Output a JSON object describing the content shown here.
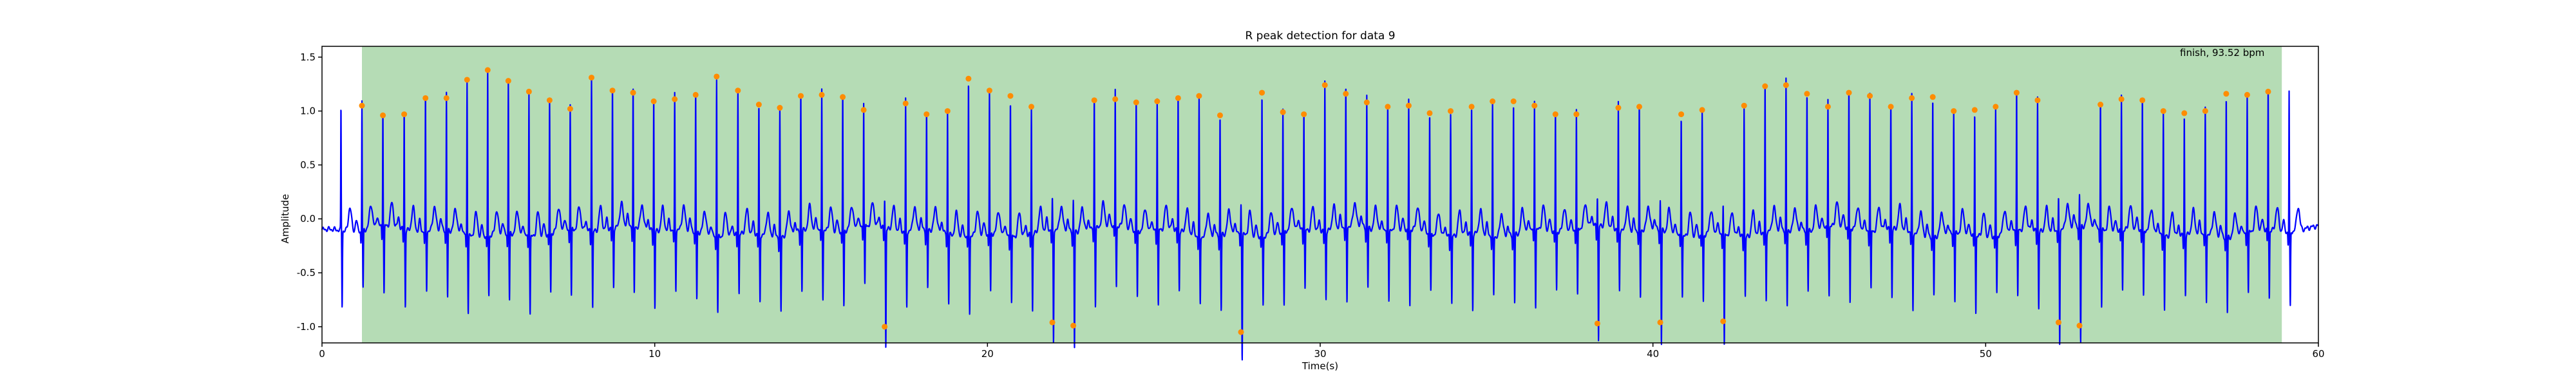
{
  "chart_data": {
    "type": "line",
    "title": "R peak detection for data 9",
    "xlabel": "Time(s)",
    "ylabel": "Amplitude",
    "xlim": [
      0,
      60
    ],
    "ylim": [
      -1.15,
      1.6
    ],
    "xticks": [
      0,
      10,
      20,
      30,
      40,
      50,
      60
    ],
    "yticks": [
      -1.0,
      -0.5,
      0.0,
      0.5,
      1.0,
      1.5
    ],
    "grid": false,
    "annotation": "finish, 93.52 bpm",
    "colors": {
      "signal": "#0000ff",
      "peaks": "#ff8c00",
      "window": "#b5dcb5",
      "axes": "#000000"
    },
    "detection_window": [
      1.2,
      58.9
    ],
    "beats": [
      {
        "t": 1.2,
        "a": 1.05
      },
      {
        "t": 1.83,
        "a": 0.96
      },
      {
        "t": 2.47,
        "a": 0.97
      },
      {
        "t": 3.11,
        "a": 1.12
      },
      {
        "t": 3.74,
        "a": 1.12
      },
      {
        "t": 4.36,
        "a": 1.29
      },
      {
        "t": 4.98,
        "a": 1.38
      },
      {
        "t": 5.6,
        "a": 1.28
      },
      {
        "t": 6.22,
        "a": 1.18
      },
      {
        "t": 6.84,
        "a": 1.1
      },
      {
        "t": 7.46,
        "a": 1.02
      },
      {
        "t": 8.1,
        "a": 1.31
      },
      {
        "t": 8.73,
        "a": 1.19
      },
      {
        "t": 9.35,
        "a": 1.17
      },
      {
        "t": 9.97,
        "a": 1.09
      },
      {
        "t": 10.6,
        "a": 1.11
      },
      {
        "t": 11.23,
        "a": 1.15
      },
      {
        "t": 11.86,
        "a": 1.32
      },
      {
        "t": 12.5,
        "a": 1.19
      },
      {
        "t": 13.13,
        "a": 1.06
      },
      {
        "t": 13.76,
        "a": 1.03
      },
      {
        "t": 14.39,
        "a": 1.14
      },
      {
        "t": 15.02,
        "a": 1.15
      },
      {
        "t": 15.65,
        "a": 1.13
      },
      {
        "t": 16.28,
        "a": 1.01
      },
      {
        "t": 16.91,
        "a": -1.0
      },
      {
        "t": 17.54,
        "a": 1.07
      },
      {
        "t": 18.17,
        "a": 0.97
      },
      {
        "t": 18.8,
        "a": 1.0
      },
      {
        "t": 19.43,
        "a": 1.3
      },
      {
        "t": 20.06,
        "a": 1.19
      },
      {
        "t": 20.69,
        "a": 1.14
      },
      {
        "t": 21.32,
        "a": 1.04
      },
      {
        "t": 21.95,
        "a": -0.96
      },
      {
        "t": 22.58,
        "a": -0.99
      },
      {
        "t": 23.21,
        "a": 1.1
      },
      {
        "t": 23.84,
        "a": 1.11
      },
      {
        "t": 24.47,
        "a": 1.08
      },
      {
        "t": 25.1,
        "a": 1.09
      },
      {
        "t": 25.73,
        "a": 1.12
      },
      {
        "t": 26.36,
        "a": 1.14
      },
      {
        "t": 26.99,
        "a": 0.96
      },
      {
        "t": 27.62,
        "a": -1.05
      },
      {
        "t": 28.25,
        "a": 1.17
      },
      {
        "t": 28.88,
        "a": 0.99
      },
      {
        "t": 29.51,
        "a": 0.97
      },
      {
        "t": 30.14,
        "a": 1.24
      },
      {
        "t": 30.77,
        "a": 1.16
      },
      {
        "t": 31.4,
        "a": 1.08
      },
      {
        "t": 32.03,
        "a": 1.04
      },
      {
        "t": 32.66,
        "a": 1.05
      },
      {
        "t": 33.29,
        "a": 0.98
      },
      {
        "t": 33.92,
        "a": 1.0
      },
      {
        "t": 34.55,
        "a": 1.04
      },
      {
        "t": 35.18,
        "a": 1.09
      },
      {
        "t": 35.81,
        "a": 1.09
      },
      {
        "t": 36.44,
        "a": 1.05
      },
      {
        "t": 37.07,
        "a": 0.97
      },
      {
        "t": 37.7,
        "a": 0.97
      },
      {
        "t": 38.33,
        "a": -0.97
      },
      {
        "t": 38.96,
        "a": 1.03
      },
      {
        "t": 39.59,
        "a": 1.04
      },
      {
        "t": 40.22,
        "a": -0.96
      },
      {
        "t": 40.85,
        "a": 0.97
      },
      {
        "t": 41.48,
        "a": 1.01
      },
      {
        "t": 42.11,
        "a": -0.95
      },
      {
        "t": 42.74,
        "a": 1.05
      },
      {
        "t": 43.37,
        "a": 1.23
      },
      {
        "t": 44.0,
        "a": 1.24
      },
      {
        "t": 44.63,
        "a": 1.16
      },
      {
        "t": 45.26,
        "a": 1.04
      },
      {
        "t": 45.89,
        "a": 1.17
      },
      {
        "t": 46.52,
        "a": 1.14
      },
      {
        "t": 47.15,
        "a": 1.04
      },
      {
        "t": 47.78,
        "a": 1.12
      },
      {
        "t": 48.41,
        "a": 1.13
      },
      {
        "t": 49.04,
        "a": 1.0
      },
      {
        "t": 49.67,
        "a": 1.01
      },
      {
        "t": 50.3,
        "a": 1.04
      },
      {
        "t": 50.93,
        "a": 1.17
      },
      {
        "t": 51.56,
        "a": 1.1
      },
      {
        "t": 52.19,
        "a": -0.96
      },
      {
        "t": 52.82,
        "a": -0.99
      },
      {
        "t": 53.45,
        "a": 1.06
      },
      {
        "t": 54.08,
        "a": 1.11
      },
      {
        "t": 54.71,
        "a": 1.1
      },
      {
        "t": 55.34,
        "a": 1.0
      },
      {
        "t": 55.97,
        "a": 0.98
      },
      {
        "t": 56.6,
        "a": 1.0
      },
      {
        "t": 57.23,
        "a": 1.16
      },
      {
        "t": 57.86,
        "a": 1.15
      },
      {
        "t": 58.49,
        "a": 1.18
      },
      {
        "t": 59.12,
        "a": 1.15
      }
    ]
  }
}
